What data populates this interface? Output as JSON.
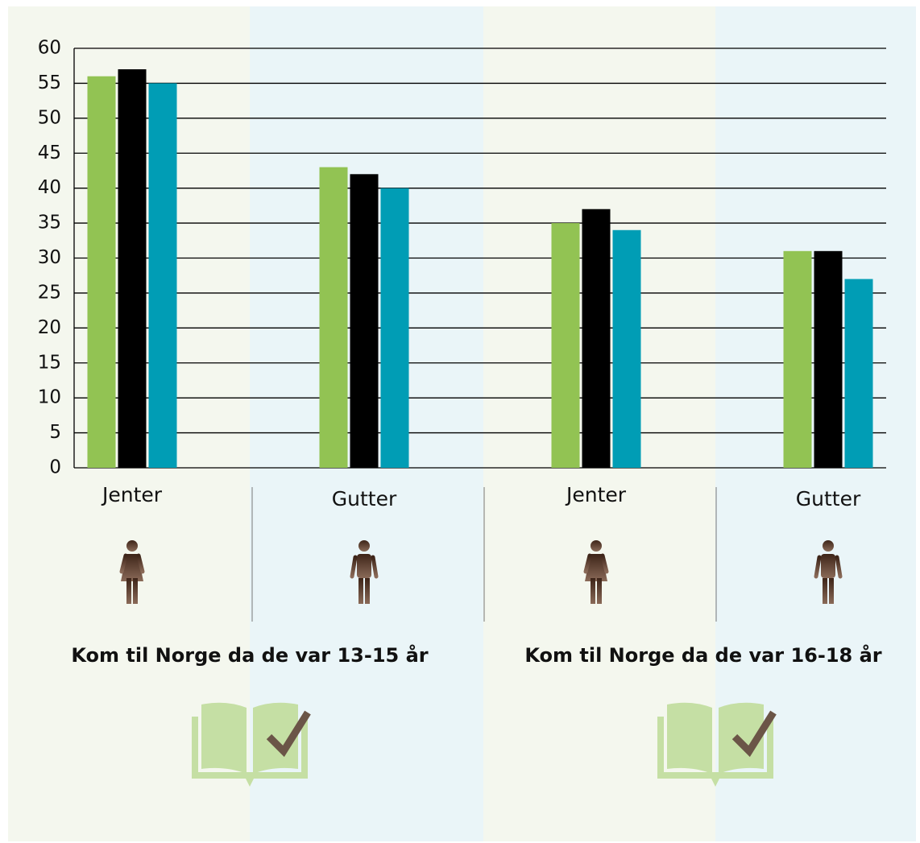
{
  "chart_data": {
    "type": "bar",
    "categories": [
      "Jenter",
      "Gutter",
      "Jenter",
      "Gutter"
    ],
    "series": [
      {
        "color": "#92c353",
        "values": [
          56,
          43,
          35,
          31
        ]
      },
      {
        "color": "#000000",
        "values": [
          57,
          42,
          37,
          31
        ]
      },
      {
        "color": "#009db5",
        "values": [
          55,
          40,
          34,
          27
        ]
      }
    ],
    "groups": [
      "Kom til Norge da de var 13-15 år",
      "Kom til Norge da de var 16-18 år"
    ],
    "ylim": [
      0,
      60
    ],
    "yticks": [
      0,
      5,
      10,
      15,
      20,
      25,
      30,
      35,
      40,
      45,
      50,
      55,
      60
    ],
    "grid": true
  }
}
